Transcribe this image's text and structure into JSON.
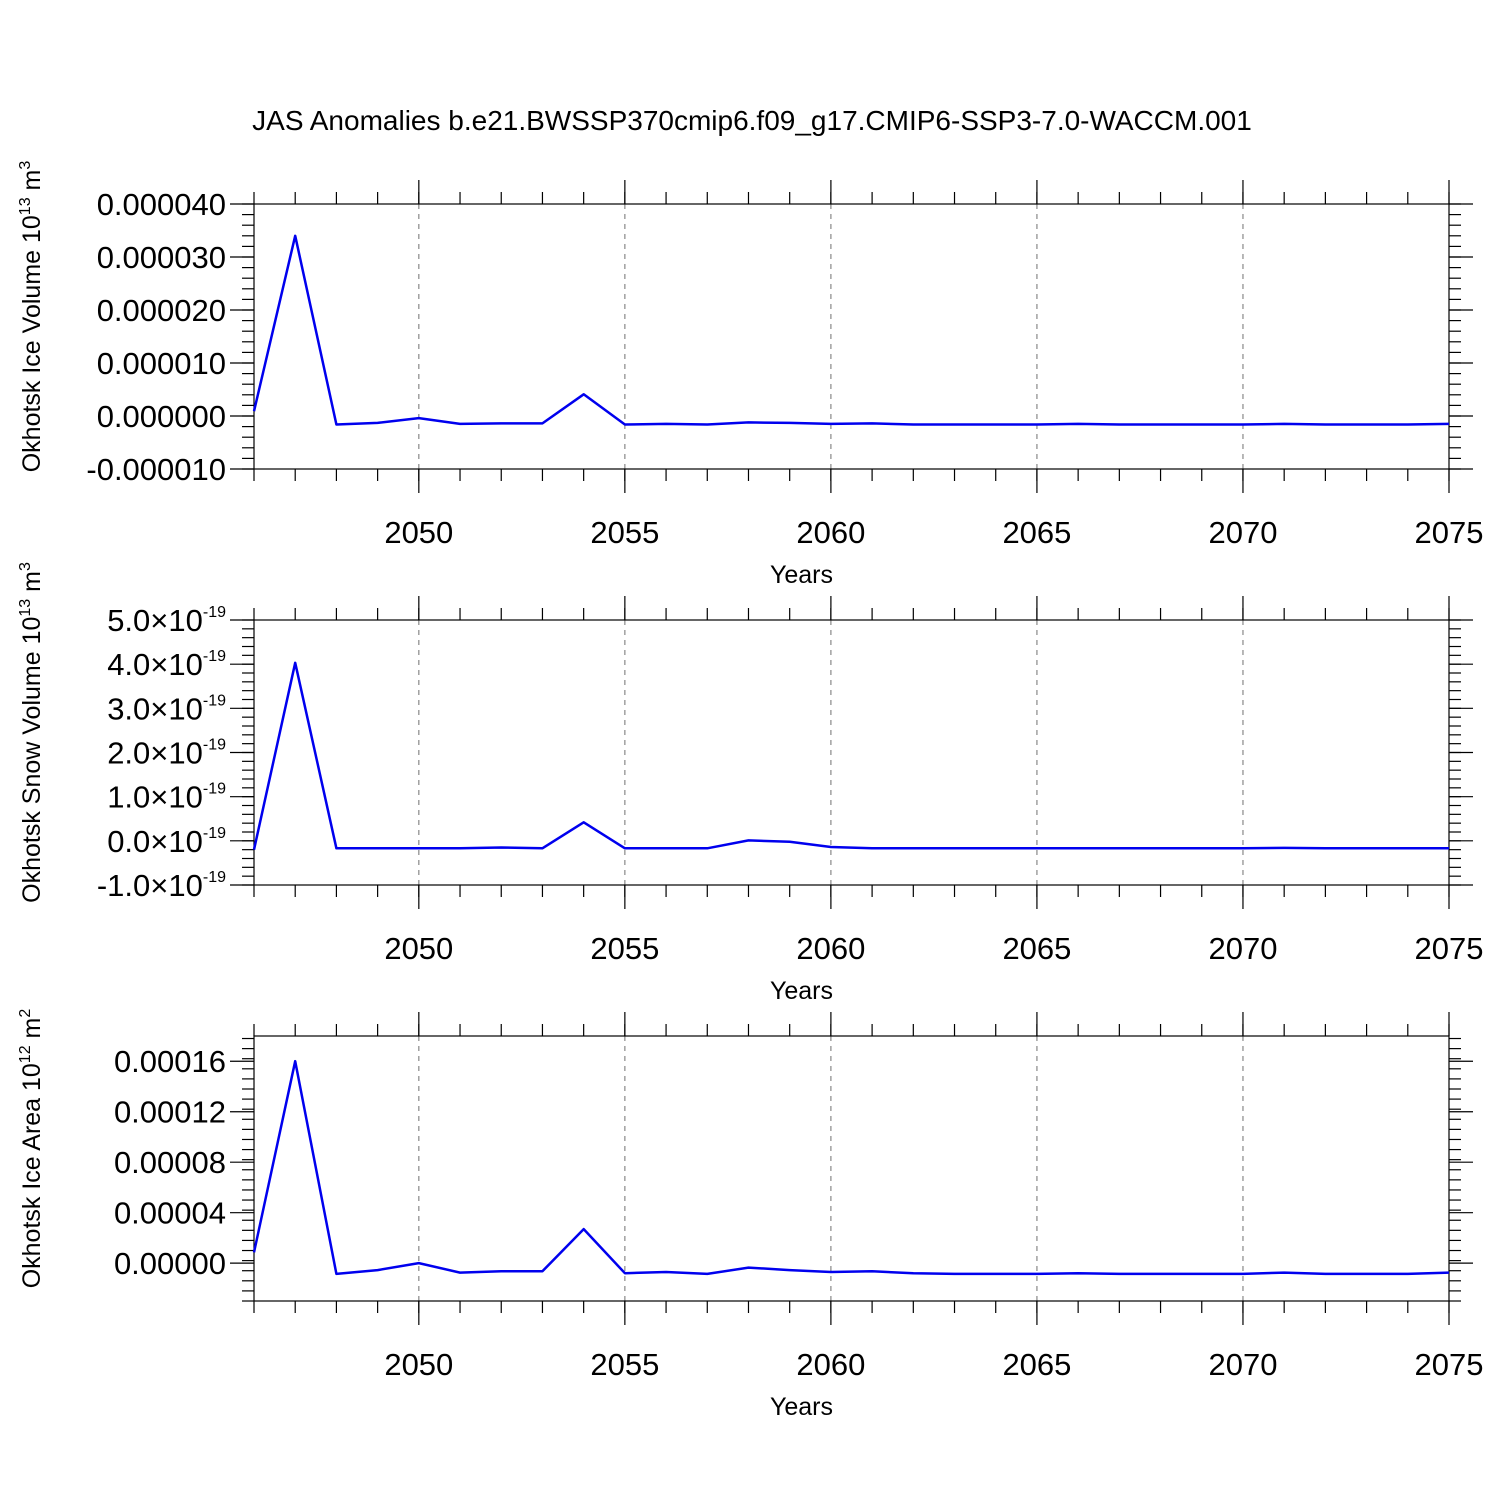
{
  "title": "JAS Anomalies b.e21.BWSSP370cmip6.f09_g17.CMIP6-SSP3-7.0-WACCM.001",
  "colors": {
    "series": "#0000ee",
    "grid": "#888888",
    "axis": "#000000"
  },
  "chart_data": [
    {
      "type": "line",
      "xlabel": "Years",
      "ylabel": {
        "text": "Okhotsk Ice Volume 10",
        "sup": "13",
        "unit": " m",
        "unit_sup": "3"
      },
      "xlim": [
        2046,
        2075
      ],
      "ylim": [
        -1e-05,
        4e-05
      ],
      "grid": "vertical dashed at major x ticks",
      "x_ticks": [
        2050,
        2055,
        2060,
        2065,
        2070,
        2075
      ],
      "x_tick_labels": [
        "2050",
        "2055",
        "2060",
        "2065",
        "2070",
        "2075"
      ],
      "y_ticks": [
        -1e-05,
        0.0,
        1e-05,
        2e-05,
        3e-05,
        4e-05
      ],
      "y_tick_labels": [
        "-0.000010",
        "0.000000",
        "0.000010",
        "0.000020",
        "0.000030",
        "0.000040"
      ],
      "x": [
        2046,
        2047,
        2048,
        2049,
        2050,
        2051,
        2052,
        2053,
        2054,
        2055,
        2056,
        2057,
        2058,
        2059,
        2060,
        2061,
        2062,
        2063,
        2064,
        2065,
        2066,
        2067,
        2068,
        2069,
        2070,
        2071,
        2072,
        2073,
        2074,
        2075
      ],
      "values": [
        9e-07,
        3.4e-05,
        -1.6e-06,
        -1.3e-06,
        -4e-07,
        -1.5e-06,
        -1.4e-06,
        -1.4e-06,
        4.1e-06,
        -1.6e-06,
        -1.5e-06,
        -1.6e-06,
        -1.2e-06,
        -1.3e-06,
        -1.5e-06,
        -1.4e-06,
        -1.6e-06,
        -1.6e-06,
        -1.6e-06,
        -1.6e-06,
        -1.5e-06,
        -1.6e-06,
        -1.6e-06,
        -1.6e-06,
        -1.6e-06,
        -1.5e-06,
        -1.6e-06,
        -1.6e-06,
        -1.6e-06,
        -1.5e-06
      ]
    },
    {
      "type": "line",
      "xlabel": "Years",
      "ylabel": {
        "text": "Okhotsk Snow Volume 10",
        "sup": "13",
        "unit": " m",
        "unit_sup": "3"
      },
      "xlim": [
        2046,
        2075
      ],
      "ylim": [
        -1e-19,
        5e-19
      ],
      "grid": "vertical dashed at major x ticks",
      "x_ticks": [
        2050,
        2055,
        2060,
        2065,
        2070,
        2075
      ],
      "x_tick_labels": [
        "2050",
        "2055",
        "2060",
        "2065",
        "2070",
        "2075"
      ],
      "y_ticks": [
        -1e-19,
        0.0,
        1e-19,
        2e-19,
        3e-19,
        4e-19,
        5e-19
      ],
      "y_tick_labels": [
        {
          "mant": "-1.0",
          "exp": "-19"
        },
        {
          "mant": "0.0",
          "exp": "-19"
        },
        {
          "mant": "1.0",
          "exp": "-19"
        },
        {
          "mant": "2.0",
          "exp": "-19"
        },
        {
          "mant": "3.0",
          "exp": "-19"
        },
        {
          "mant": "4.0",
          "exp": "-19"
        },
        {
          "mant": "5.0",
          "exp": "-19"
        }
      ],
      "tick_times": "×10",
      "x": [
        2046,
        2047,
        2048,
        2049,
        2050,
        2051,
        2052,
        2053,
        2054,
        2055,
        2056,
        2057,
        2058,
        2059,
        2060,
        2061,
        2062,
        2063,
        2064,
        2065,
        2066,
        2067,
        2068,
        2069,
        2070,
        2071,
        2072,
        2073,
        2074,
        2075
      ],
      "values": [
        -2e-20,
        4.03e-19,
        -1.7e-20,
        -1.7e-20,
        -1.7e-20,
        -1.7e-20,
        -1.5e-20,
        -1.7e-20,
        4.2e-20,
        -1.7e-20,
        -1.7e-20,
        -1.7e-20,
        1e-21,
        -2e-21,
        -1.4e-20,
        -1.7e-20,
        -1.7e-20,
        -1.7e-20,
        -1.7e-20,
        -1.7e-20,
        -1.7e-20,
        -1.7e-20,
        -1.7e-20,
        -1.7e-20,
        -1.7e-20,
        -1.6e-20,
        -1.7e-20,
        -1.7e-20,
        -1.7e-20,
        -1.7e-20
      ]
    },
    {
      "type": "line",
      "xlabel": "Years",
      "ylabel": {
        "text": "Okhotsk Ice Area 10",
        "sup": "12",
        "unit": " m",
        "unit_sup": "2"
      },
      "xlim": [
        2046,
        2075
      ],
      "ylim": [
        -3e-05,
        0.00018
      ],
      "grid": "vertical dashed at major x ticks",
      "x_ticks": [
        2050,
        2055,
        2060,
        2065,
        2070,
        2075
      ],
      "x_tick_labels": [
        "2050",
        "2055",
        "2060",
        "2065",
        "2070",
        "2075"
      ],
      "y_ticks": [
        0.0,
        4e-05,
        8e-05,
        0.00012,
        0.00016
      ],
      "y_tick_labels": [
        "0.00000",
        "0.00004",
        "0.00008",
        "0.00012",
        "0.00016"
      ],
      "x": [
        2046,
        2047,
        2048,
        2049,
        2050,
        2051,
        2052,
        2053,
        2054,
        2055,
        2056,
        2057,
        2058,
        2059,
        2060,
        2061,
        2062,
        2063,
        2064,
        2065,
        2066,
        2067,
        2068,
        2069,
        2070,
        2071,
        2072,
        2073,
        2074,
        2075
      ],
      "values": [
        8.5e-06,
        0.00016,
        -8.5e-06,
        -5.5e-06,
        0.0,
        -7.5e-06,
        -6.5e-06,
        -6.5e-06,
        2.7e-05,
        -8e-06,
        -7e-06,
        -8.5e-06,
        -3.5e-06,
        -5.5e-06,
        -7e-06,
        -6.5e-06,
        -8e-06,
        -8.5e-06,
        -8.5e-06,
        -8.5e-06,
        -8e-06,
        -8.5e-06,
        -8.5e-06,
        -8.5e-06,
        -8.5e-06,
        -7.5e-06,
        -8.5e-06,
        -8.5e-06,
        -8.5e-06,
        -7.5e-06
      ]
    }
  ]
}
